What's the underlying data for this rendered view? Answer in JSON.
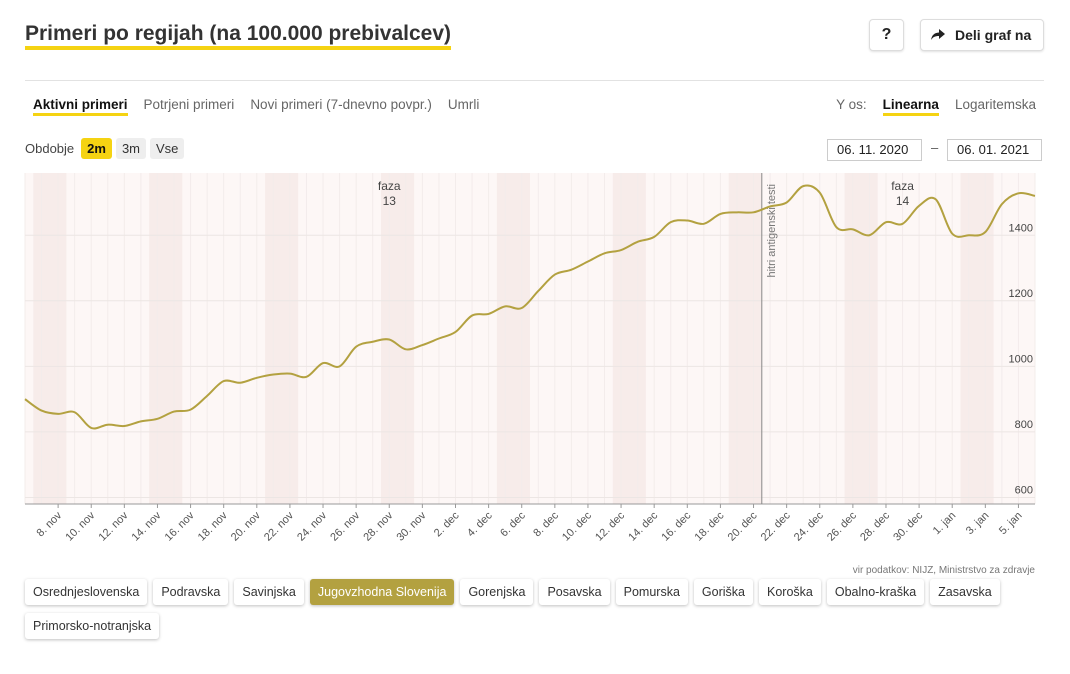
{
  "title": "Primeri po regijah (na 100.000 prebivalcev)",
  "help_label": "?",
  "share_label": "Deli graf na",
  "tabs": [
    {
      "label": "Aktivni primeri",
      "active": true
    },
    {
      "label": "Potrjeni primeri",
      "active": false
    },
    {
      "label": "Novi primeri (7-dnevno povpr.)",
      "active": false
    },
    {
      "label": "Umrli",
      "active": false
    }
  ],
  "y_scale": {
    "label": "Y os:",
    "options": [
      {
        "label": "Linearna",
        "active": true
      },
      {
        "label": "Logaritemska",
        "active": false
      }
    ]
  },
  "period": {
    "label": "Obdobje",
    "options": [
      {
        "label": "2m",
        "active": true
      },
      {
        "label": "3m",
        "active": false
      },
      {
        "label": "Vse",
        "active": false
      }
    ]
  },
  "date_range": {
    "from": "06. 11. 2020",
    "dash": "–",
    "to": "06. 01. 2021"
  },
  "source": "vir podatkov: NIJZ, Ministrstvo za zdravje",
  "regions": [
    {
      "label": "Osrednjeslovenska",
      "active": false
    },
    {
      "label": "Podravska",
      "active": false
    },
    {
      "label": "Savinjska",
      "active": false
    },
    {
      "label": "Jugovzhodna Slovenija",
      "active": true
    },
    {
      "label": "Gorenjska",
      "active": false
    },
    {
      "label": "Posavska",
      "active": false
    },
    {
      "label": "Pomurska",
      "active": false
    },
    {
      "label": "Goriška",
      "active": false
    },
    {
      "label": "Koroška",
      "active": false
    },
    {
      "label": "Obalno-kraška",
      "active": false
    },
    {
      "label": "Zasavska",
      "active": false
    },
    {
      "label": "Primorsko-notranjska",
      "active": false
    }
  ],
  "colors": {
    "accent": "#f5d312",
    "line": "#b3a140",
    "weekend_band": "#f7ecea",
    "plot_bg": "#fdf7f6",
    "grid": "#ece6e4"
  },
  "chart_data": {
    "type": "line",
    "x_start": "6. nov",
    "x_ticks": [
      "8. nov",
      "10. nov",
      "12. nov",
      "14. nov",
      "16. nov",
      "18. nov",
      "20. nov",
      "22. nov",
      "24. nov",
      "26. nov",
      "28. nov",
      "30. nov",
      "2. dec",
      "4. dec",
      "6. dec",
      "8. dec",
      "10. dec",
      "12. dec",
      "14. dec",
      "16. dec",
      "18. dec",
      "20. dec",
      "22. dec",
      "24. dec",
      "26. dec",
      "28. dec",
      "30. dec",
      "1. jan",
      "3. jan",
      "5. jan"
    ],
    "y_ticks": [
      600,
      800,
      1000,
      1200,
      1400
    ],
    "ylim": [
      580,
      1590
    ],
    "grid": true,
    "series": [
      {
        "values": [
          900,
          865,
          855,
          860,
          812,
          822,
          818,
          832,
          840,
          862,
          868,
          910,
          955,
          950,
          965,
          975,
          978,
          968,
          1010,
          1000,
          1060,
          1075,
          1082,
          1052,
          1065,
          1085,
          1105,
          1155,
          1160,
          1183,
          1178,
          1230,
          1280,
          1295,
          1320,
          1345,
          1355,
          1380,
          1395,
          1440,
          1445,
          1435,
          1465,
          1470,
          1470,
          1488,
          1500,
          1550,
          1530,
          1425,
          1418,
          1400,
          1440,
          1435,
          1490,
          1510,
          1405,
          1400,
          1410,
          1495,
          1528,
          1520
        ]
      }
    ],
    "annotations": [
      {
        "type": "phase",
        "label_line1": "faza",
        "label_line2": "13",
        "day": 22
      },
      {
        "type": "phase",
        "label_line1": "faza",
        "label_line2": "14",
        "day": 53
      },
      {
        "type": "vline",
        "label": "hitri antigenski testi",
        "day": 44.5
      }
    ],
    "weekend_start_days": [
      0.5,
      7.5,
      14.5,
      21.5,
      28.5,
      35.5,
      42.5,
      49.5,
      56.5
    ]
  }
}
